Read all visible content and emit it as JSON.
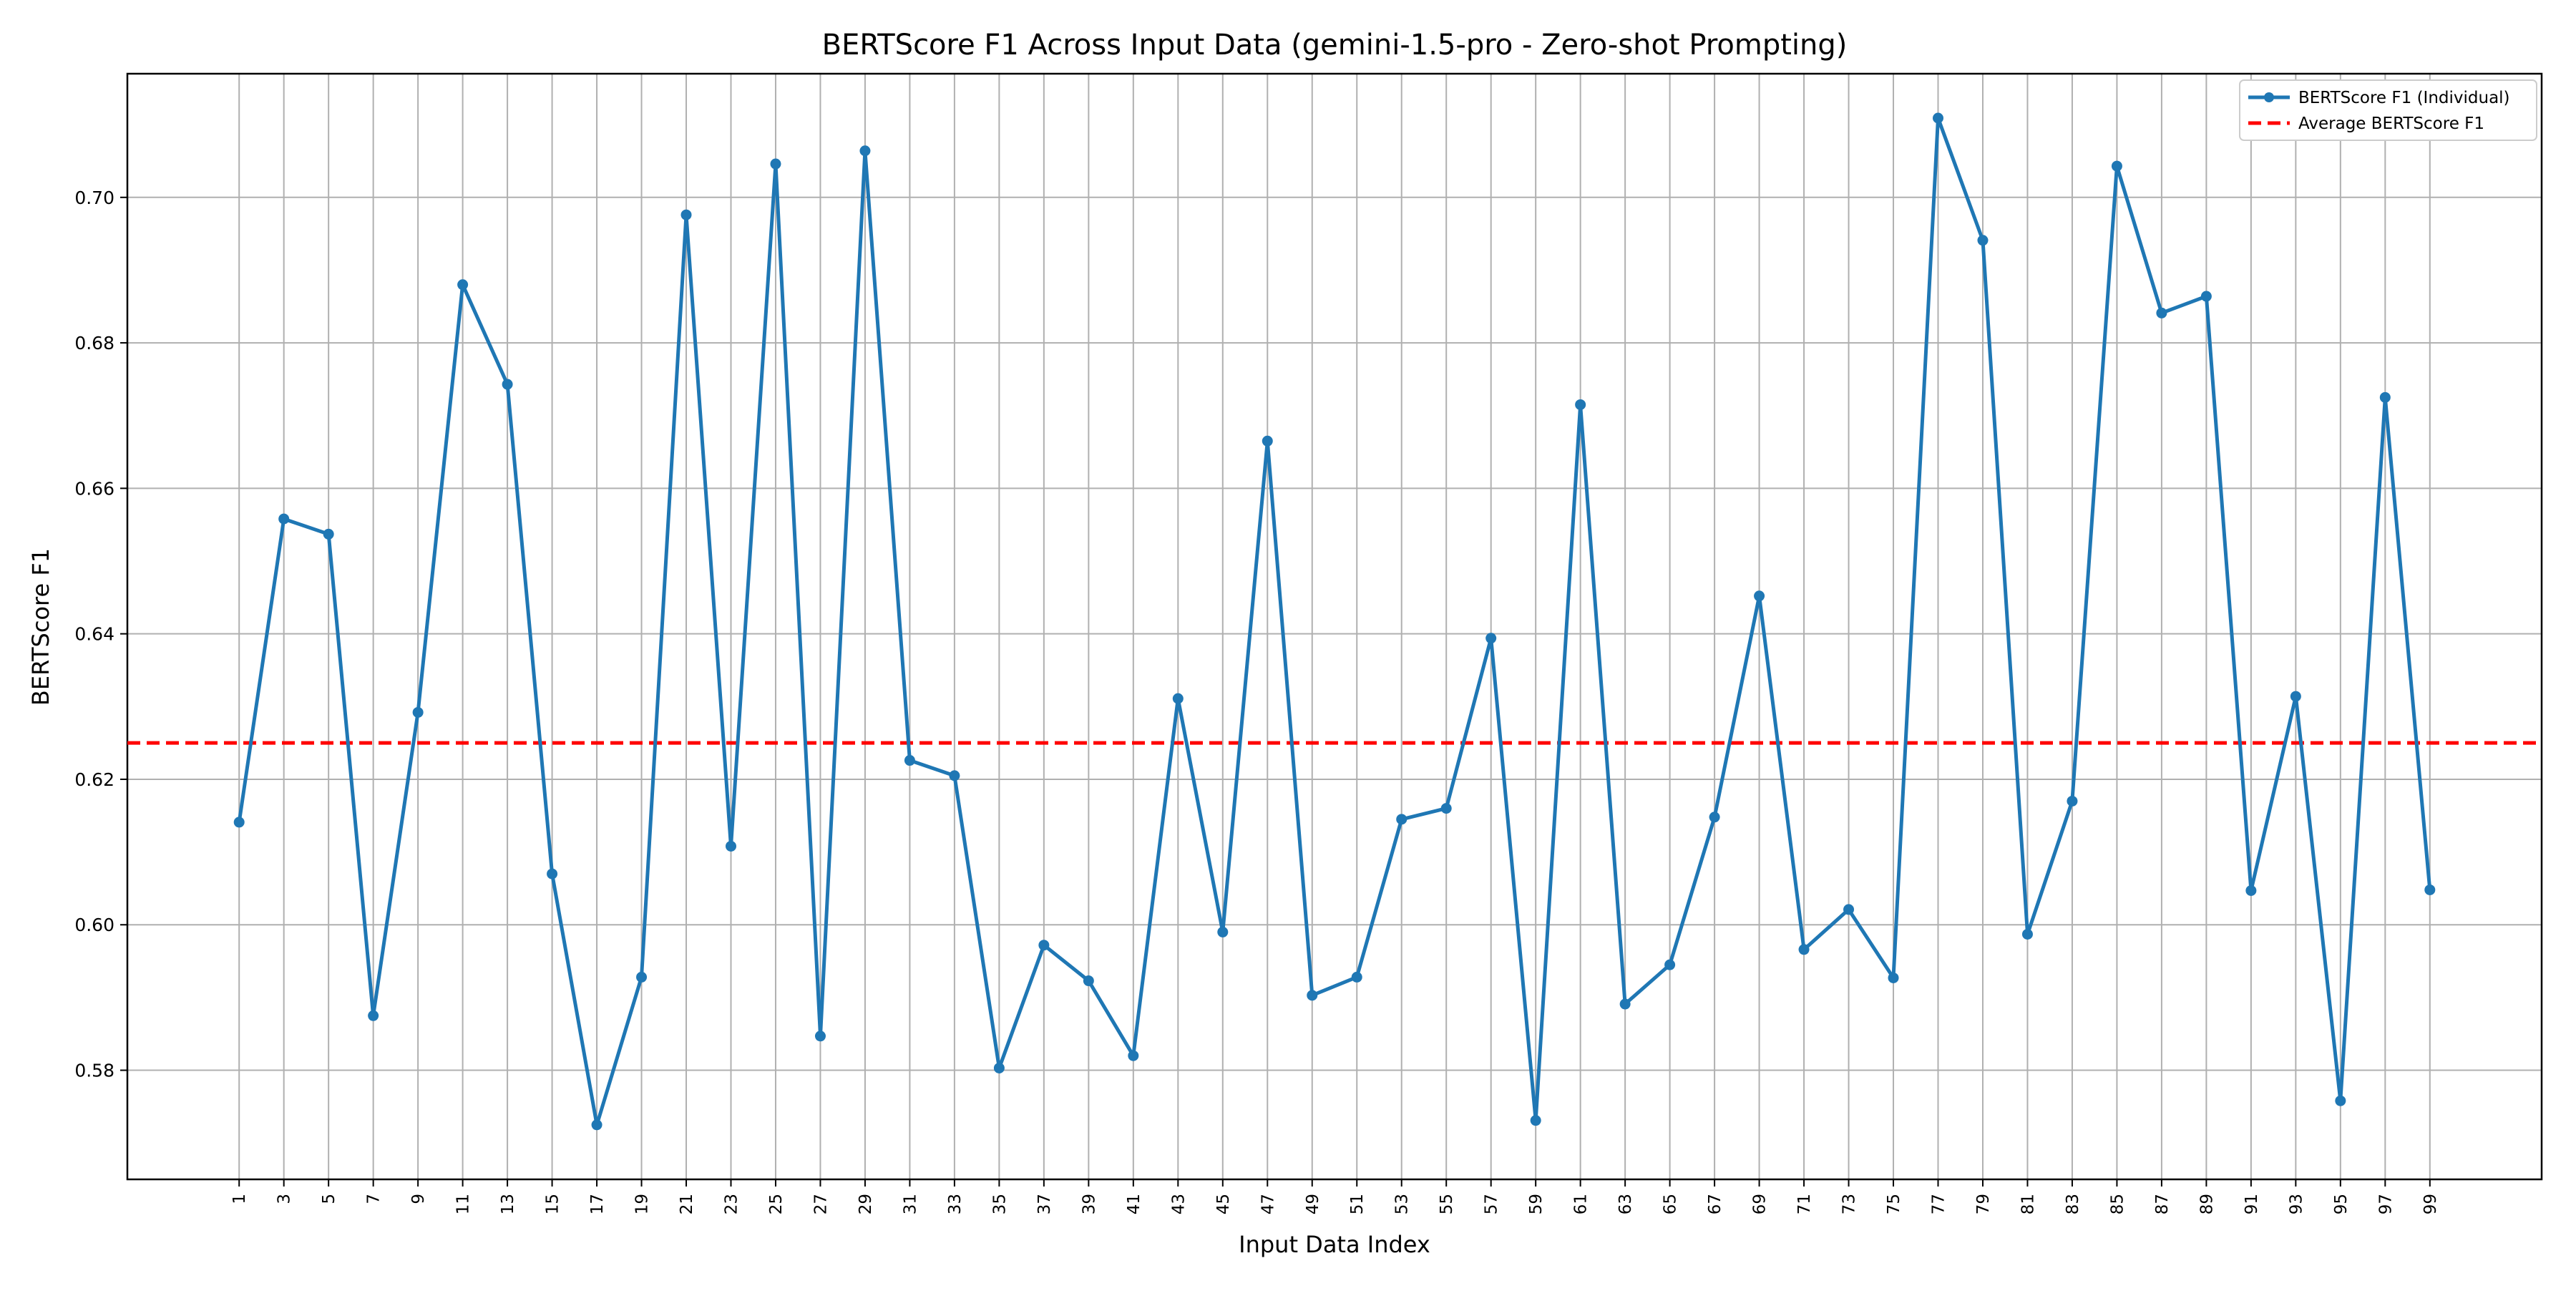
{
  "chart_data": {
    "type": "line",
    "title": "BERTScore F1 Across Input Data (gemini-1.5-pro - Zero-shot Prompting)",
    "xlabel": "Input Data Index",
    "ylabel": "BERTScore F1",
    "x": [
      1,
      3,
      5,
      7,
      9,
      11,
      13,
      15,
      17,
      19,
      21,
      23,
      25,
      27,
      29,
      31,
      33,
      35,
      37,
      39,
      41,
      43,
      45,
      47,
      49,
      51,
      53,
      55,
      57,
      59,
      61,
      63,
      65,
      67,
      69,
      71,
      73,
      75,
      77,
      79,
      81,
      83,
      85,
      87,
      89,
      91,
      93,
      95,
      97,
      99
    ],
    "xticks": [
      "1",
      "3",
      "5",
      "7",
      "9",
      "11",
      "13",
      "15",
      "17",
      "19",
      "21",
      "23",
      "25",
      "27",
      "29",
      "31",
      "33",
      "35",
      "37",
      "39",
      "41",
      "43",
      "45",
      "47",
      "49",
      "51",
      "53",
      "55",
      "57",
      "59",
      "61",
      "63",
      "65",
      "67",
      "69",
      "71",
      "73",
      "75",
      "77",
      "79",
      "81",
      "83",
      "85",
      "87",
      "89",
      "91",
      "93",
      "95",
      "97",
      "99"
    ],
    "xlim": [
      -4,
      104
    ],
    "yticks": [
      "0.58",
      "0.60",
      "0.62",
      "0.64",
      "0.66",
      "0.68",
      "0.70"
    ],
    "ytick_values": [
      0.58,
      0.6,
      0.62,
      0.64,
      0.66,
      0.68,
      0.7
    ],
    "ylim": [
      0.565,
      0.717
    ],
    "grid": true,
    "legend_position": "top-right",
    "series": [
      {
        "name": "BERTScore F1 (Individual)",
        "color": "#1f77b4",
        "style": "solid-with-markers",
        "values": [
          0.6141,
          0.6558,
          0.6537,
          0.5875,
          0.6292,
          0.688,
          0.6743,
          0.607,
          0.5725,
          0.5928,
          0.6976,
          0.6108,
          0.7046,
          0.5847,
          0.7064,
          0.6226,
          0.6205,
          0.5803,
          0.5972,
          0.5923,
          0.582,
          0.6311,
          0.599,
          0.6665,
          0.5903,
          0.5928,
          0.6145,
          0.616,
          0.6394,
          0.5731,
          0.6715,
          0.5891,
          0.5945,
          0.6148,
          0.6452,
          0.5966,
          0.6021,
          0.5927,
          0.7109,
          0.6941,
          0.5987,
          0.617,
          0.7043,
          0.6841,
          0.6864,
          0.6047,
          0.6314,
          0.5758,
          0.6725,
          0.6048
        ]
      },
      {
        "name": "Average BERTScore F1",
        "color": "#ff0000",
        "style": "dashed",
        "value": 0.625
      }
    ]
  }
}
